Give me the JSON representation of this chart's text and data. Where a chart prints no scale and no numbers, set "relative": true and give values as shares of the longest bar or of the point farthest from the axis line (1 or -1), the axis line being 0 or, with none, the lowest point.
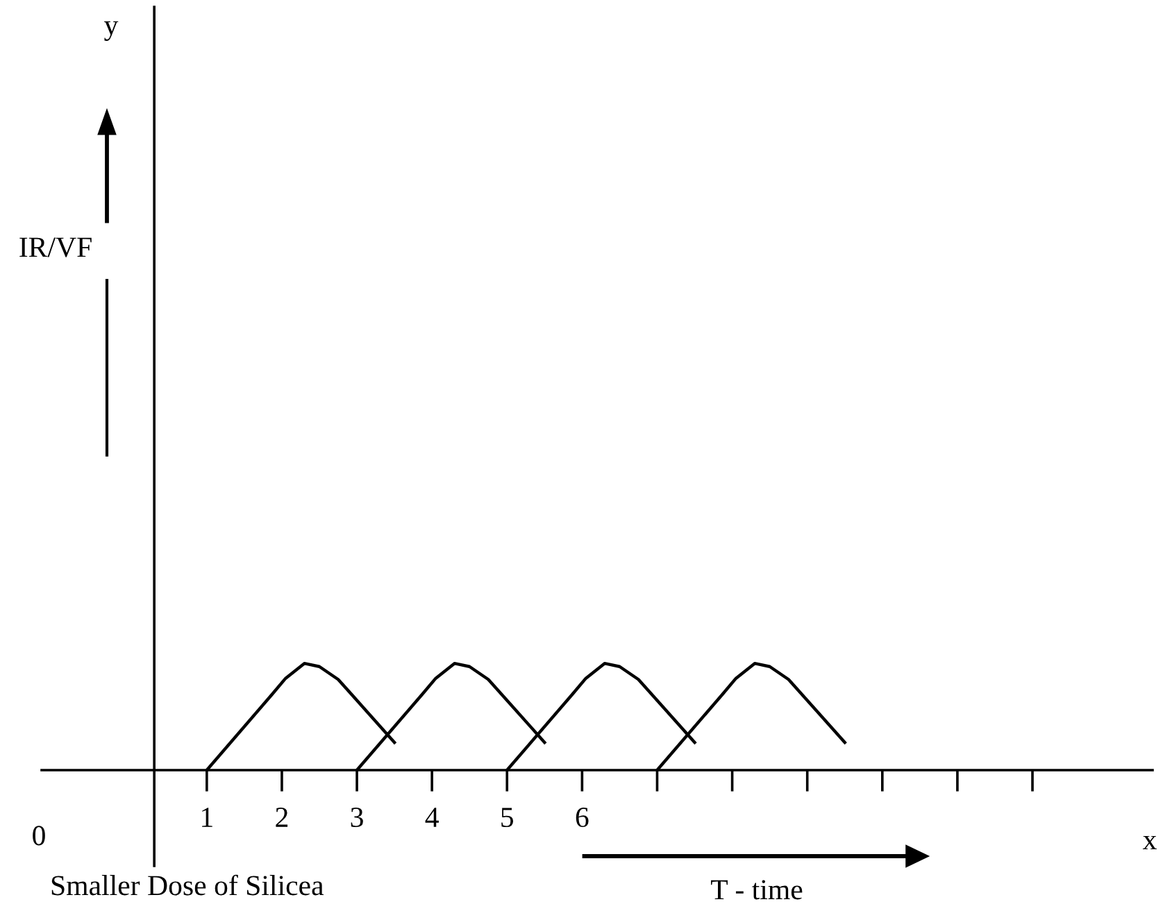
{
  "chart_data": {
    "type": "line",
    "relative": true,
    "xlabel": "T - time",
    "annotations": [
      "y",
      "x",
      "0",
      "Smaller Dose of Silicea",
      "IR/VF"
    ],
    "xlim": [
      -1.2,
      13.6
    ],
    "xticks": [
      1,
      2,
      3,
      4,
      5,
      6,
      {
        "value": 7,
        "label": null
      },
      {
        "value": 8,
        "label": null
      },
      {
        "value": 9,
        "label": null
      },
      {
        "value": 10,
        "label": null
      },
      {
        "value": 11,
        "label": null
      },
      {
        "value": 12,
        "label": null
      }
    ],
    "series": [
      {
        "color": "#000000",
        "x": [
          1,
          1.87,
          2.05,
          2.3,
          2.5,
          2.75,
          3.5
        ],
        "values": [
          0,
          0.71,
          0.86,
          1.0,
          0.97,
          0.85,
          0.26
        ]
      },
      {
        "color": "#000000",
        "x": [
          3,
          3.87,
          4.05,
          4.3,
          4.5,
          4.75,
          5.5
        ],
        "values": [
          0,
          0.71,
          0.86,
          1.0,
          0.97,
          0.85,
          0.26
        ]
      },
      {
        "color": "#000000",
        "x": [
          5,
          5.87,
          6.05,
          6.3,
          6.5,
          6.75,
          7.5
        ],
        "values": [
          0,
          0.71,
          0.86,
          1.0,
          0.97,
          0.85,
          0.26
        ]
      },
      {
        "color": "#000000",
        "x": [
          7,
          7.87,
          8.05,
          8.3,
          8.5,
          8.75,
          9.5
        ],
        "values": [
          0,
          0.71,
          0.86,
          1.0,
          0.97,
          0.85,
          0.26
        ]
      }
    ],
    "ref_lines": [
      {
        "axis": "x",
        "value": 0.3,
        "color": "#000000"
      }
    ],
    "grid": false,
    "legend": false
  }
}
